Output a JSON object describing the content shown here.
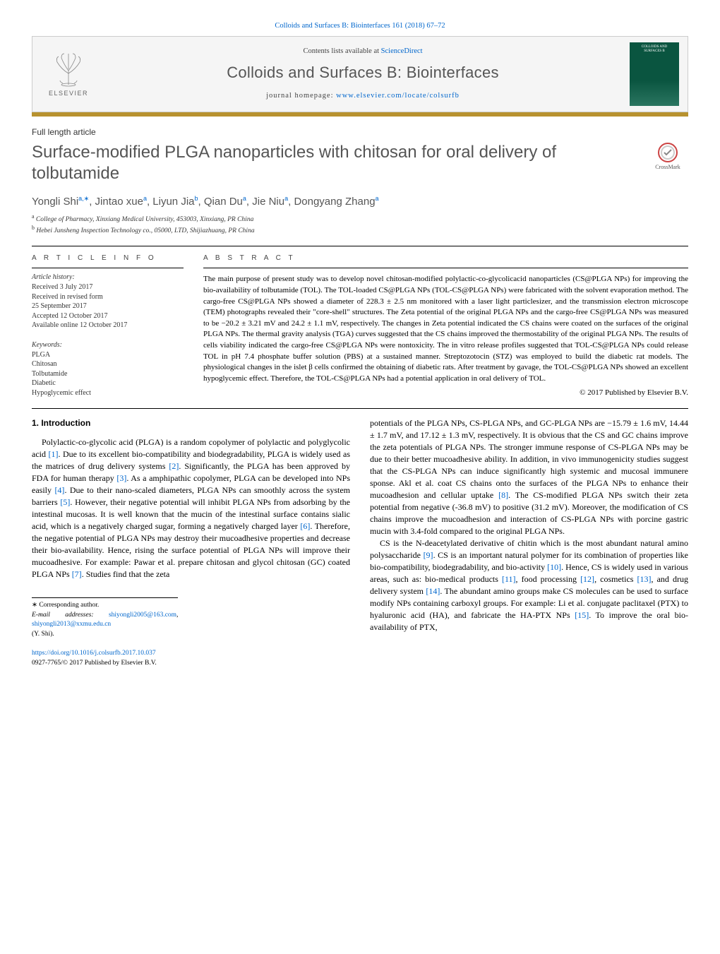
{
  "journal_ref_link": "Colloids and Surfaces B: Biointerfaces 161 (2018) 67–72",
  "contents_prefix": "Contents lists available at ",
  "contents_link": "ScienceDirect",
  "journal_name": "Colloids and Surfaces B: Biointerfaces",
  "homepage_prefix": "journal homepage: ",
  "homepage_link": "www.elsevier.com/locate/colsurfb",
  "cover_text": "COLLOIDS AND SURFACES B",
  "elsevier_label": "ELSEVIER",
  "article_type": "Full length article",
  "title": "Surface-modified PLGA nanoparticles with chitosan for oral delivery of tolbutamide",
  "crossmark_label": "CrossMark",
  "authors_html": "Yongli Shi<sup>a,∗</sup>, Jintao xue<sup>a</sup>, Liyun Jia<sup>b</sup>, Qian Du<sup>a</sup>, Jie Niu<sup>a</sup>, Dongyang Zhang<sup>a</sup>",
  "affiliations": [
    {
      "sup": "a",
      "text": " College of Pharmacy, Xinxiang Medical University, 453003, Xinxiang, PR China"
    },
    {
      "sup": "b",
      "text": " Hebei Junsheng Inspection Technology co., 05000, LTD, Shijiazhuang, PR China"
    }
  ],
  "info_heading": "A R T I C L E   I N F O",
  "history_heading": "Article history:",
  "history_lines": [
    "Received 3 July 2017",
    "Received in revised form",
    "25 September 2017",
    "Accepted 12 October 2017",
    "Available online 12 October 2017"
  ],
  "keywords_heading": "Keywords:",
  "keywords": [
    "PLGA",
    "Chitosan",
    "Tolbutamide",
    "Diabetic",
    "Hypoglycemic effect"
  ],
  "abstract_heading": "A B S T R A C T",
  "abstract_text": "The main purpose of present study was to develop novel chitosan-modified polylactic-co-glycolicacid nanoparticles (CS@PLGA NPs) for improving the bio-availability of tolbutamide (TOL). The TOL-loaded CS@PLGA NPs (TOL-CS@PLGA NPs) were fabricated with the solvent evaporation method. The cargo-free CS@PLGA NPs showed a diameter of 228.3 ± 2.5 nm monitored with a laser light particlesizer, and the transmission electron microscope (TEM) photographs revealed their \"core-shell\" structures. The Zeta potential of the original PLGA NPs and the cargo-free CS@PLGA NPs was measured to be −20.2 ± 3.21 mV and 24.2 ± 1.1 mV, respectively. The changes in Zeta potential indicated the CS chains were coated on the surfaces of the original PLGA NPs. The thermal gravity analysis (TGA) curves suggested that the CS chains improved the thermostability of the original PLGA NPs. The results of cells viability indicated the cargo-free CS@PLGA NPs were nontoxicity. The in vitro release profiles suggested that TOL-CS@PLGA NPs could release TOL in pH 7.4 phosphate buffer solution (PBS) at a sustained manner. Streptozotocin (STZ) was employed to build the diabetic rat models. The physiological changes in the islet β cells confirmed the obtaining of diabetic rats. After treatment by gavage, the TOL-CS@PLGA NPs showed an excellent hypoglycemic effect. Therefore, the TOL-CS@PLGA NPs had a potential application in oral delivery of TOL.",
  "copyright": "© 2017 Published by Elsevier B.V.",
  "section1_heading": "1. Introduction",
  "body_left": "Polylactic-co-glycolic acid (PLGA) is a random copolymer of polylactic and polyglycolic acid [1]. Due to its excellent bio-compatibility and biodegradability, PLGA is widely used as the matrices of drug delivery systems [2]. Significantly, the PLGA has been approved by FDA for human therapy [3]. As a amphipathic copolymer, PLGA can be developed into NPs easily [4]. Due to their nano-scaled diameters, PLGA NPs can smoothly across the system barriers [5]. However, their negative potential will inhibit PLGA NPs from adsorbing by the intestinal mucosas. It is well known that the mucin of the intestinal surface contains sialic acid, which is a negatively charged sugar, forming a negatively charged layer [6]. Therefore, the negative potential of PLGA NPs may destroy their mucoadhesive properties and decrease their bio-availability. Hence, rising the surface potential of PLGA NPs will improve their mucoadhesive. For example: Pawar et al. prepare chitosan and glycol chitosan (GC) coated PLGA NPs [7]. Studies find that the zeta",
  "body_right_p1": "potentials of the PLGA NPs, CS-PLGA NPs, and GC-PLGA NPs are −15.79 ± 1.6 mV, 14.44 ± 1.7 mV, and 17.12 ± 1.3 mV, respectively. It is obvious that the CS and GC chains improve the zeta potentials of PLGA NPs. The stronger immune response of CS-PLGA NPs may be due to their better mucoadhesive ability. In addition, in vivo immunogenicity studies suggest that the CS-PLGA NPs can induce significantly high systemic and mucosal immunere sponse. Akl et al. coat CS chains onto the surfaces of the PLGA NPs to enhance their mucoadhesion and cellular uptake [8]. The CS-modified PLGA NPs switch their zeta potential from negative (-36.8 mV) to positive (31.2 mV). Moreover, the modification of CS chains improve the mucoadhesion and interaction of CS-PLGA NPs with porcine gastric mucin with 3.4-fold compared to the original PLGA NPs.",
  "body_right_p2": "CS is the N-deacetylated derivative of chitin which is the most abundant natural amino polysaccharide [9]. CS is an important natural polymer for its combination of properties like bio-compatibility, biodegradability, and bio-activity [10]. Hence, CS is widely used in various areas, such as: bio-medical products [11], food processing [12], cosmetics [13], and drug delivery system [14]. The abundant amino groups make CS molecules can be used to surface modify NPs containing carboxyl groups. For example: Li et al. conjugate paclitaxel (PTX) to hyaluronic acid (HA), and fabricate the HA-PTX NPs [15]. To improve the oral bio-availability of PTX,",
  "corresponding_label": "∗ Corresponding author.",
  "email_label": "E-mail addresses: ",
  "emails": [
    "shiyongli2005@163.com",
    "shiyongli2013@xxmu.edu.cn"
  ],
  "email_name": "(Y. Shi).",
  "doi": "https://doi.org/10.1016/j.colsurfb.2017.10.037",
  "issn": "0927-7765/© 2017 Published by Elsevier B.V.",
  "colors": {
    "link": "#0066cc",
    "bar": "#b8922f",
    "heading_gray": "#555555",
    "elsevier_orange": "#ff6600"
  }
}
